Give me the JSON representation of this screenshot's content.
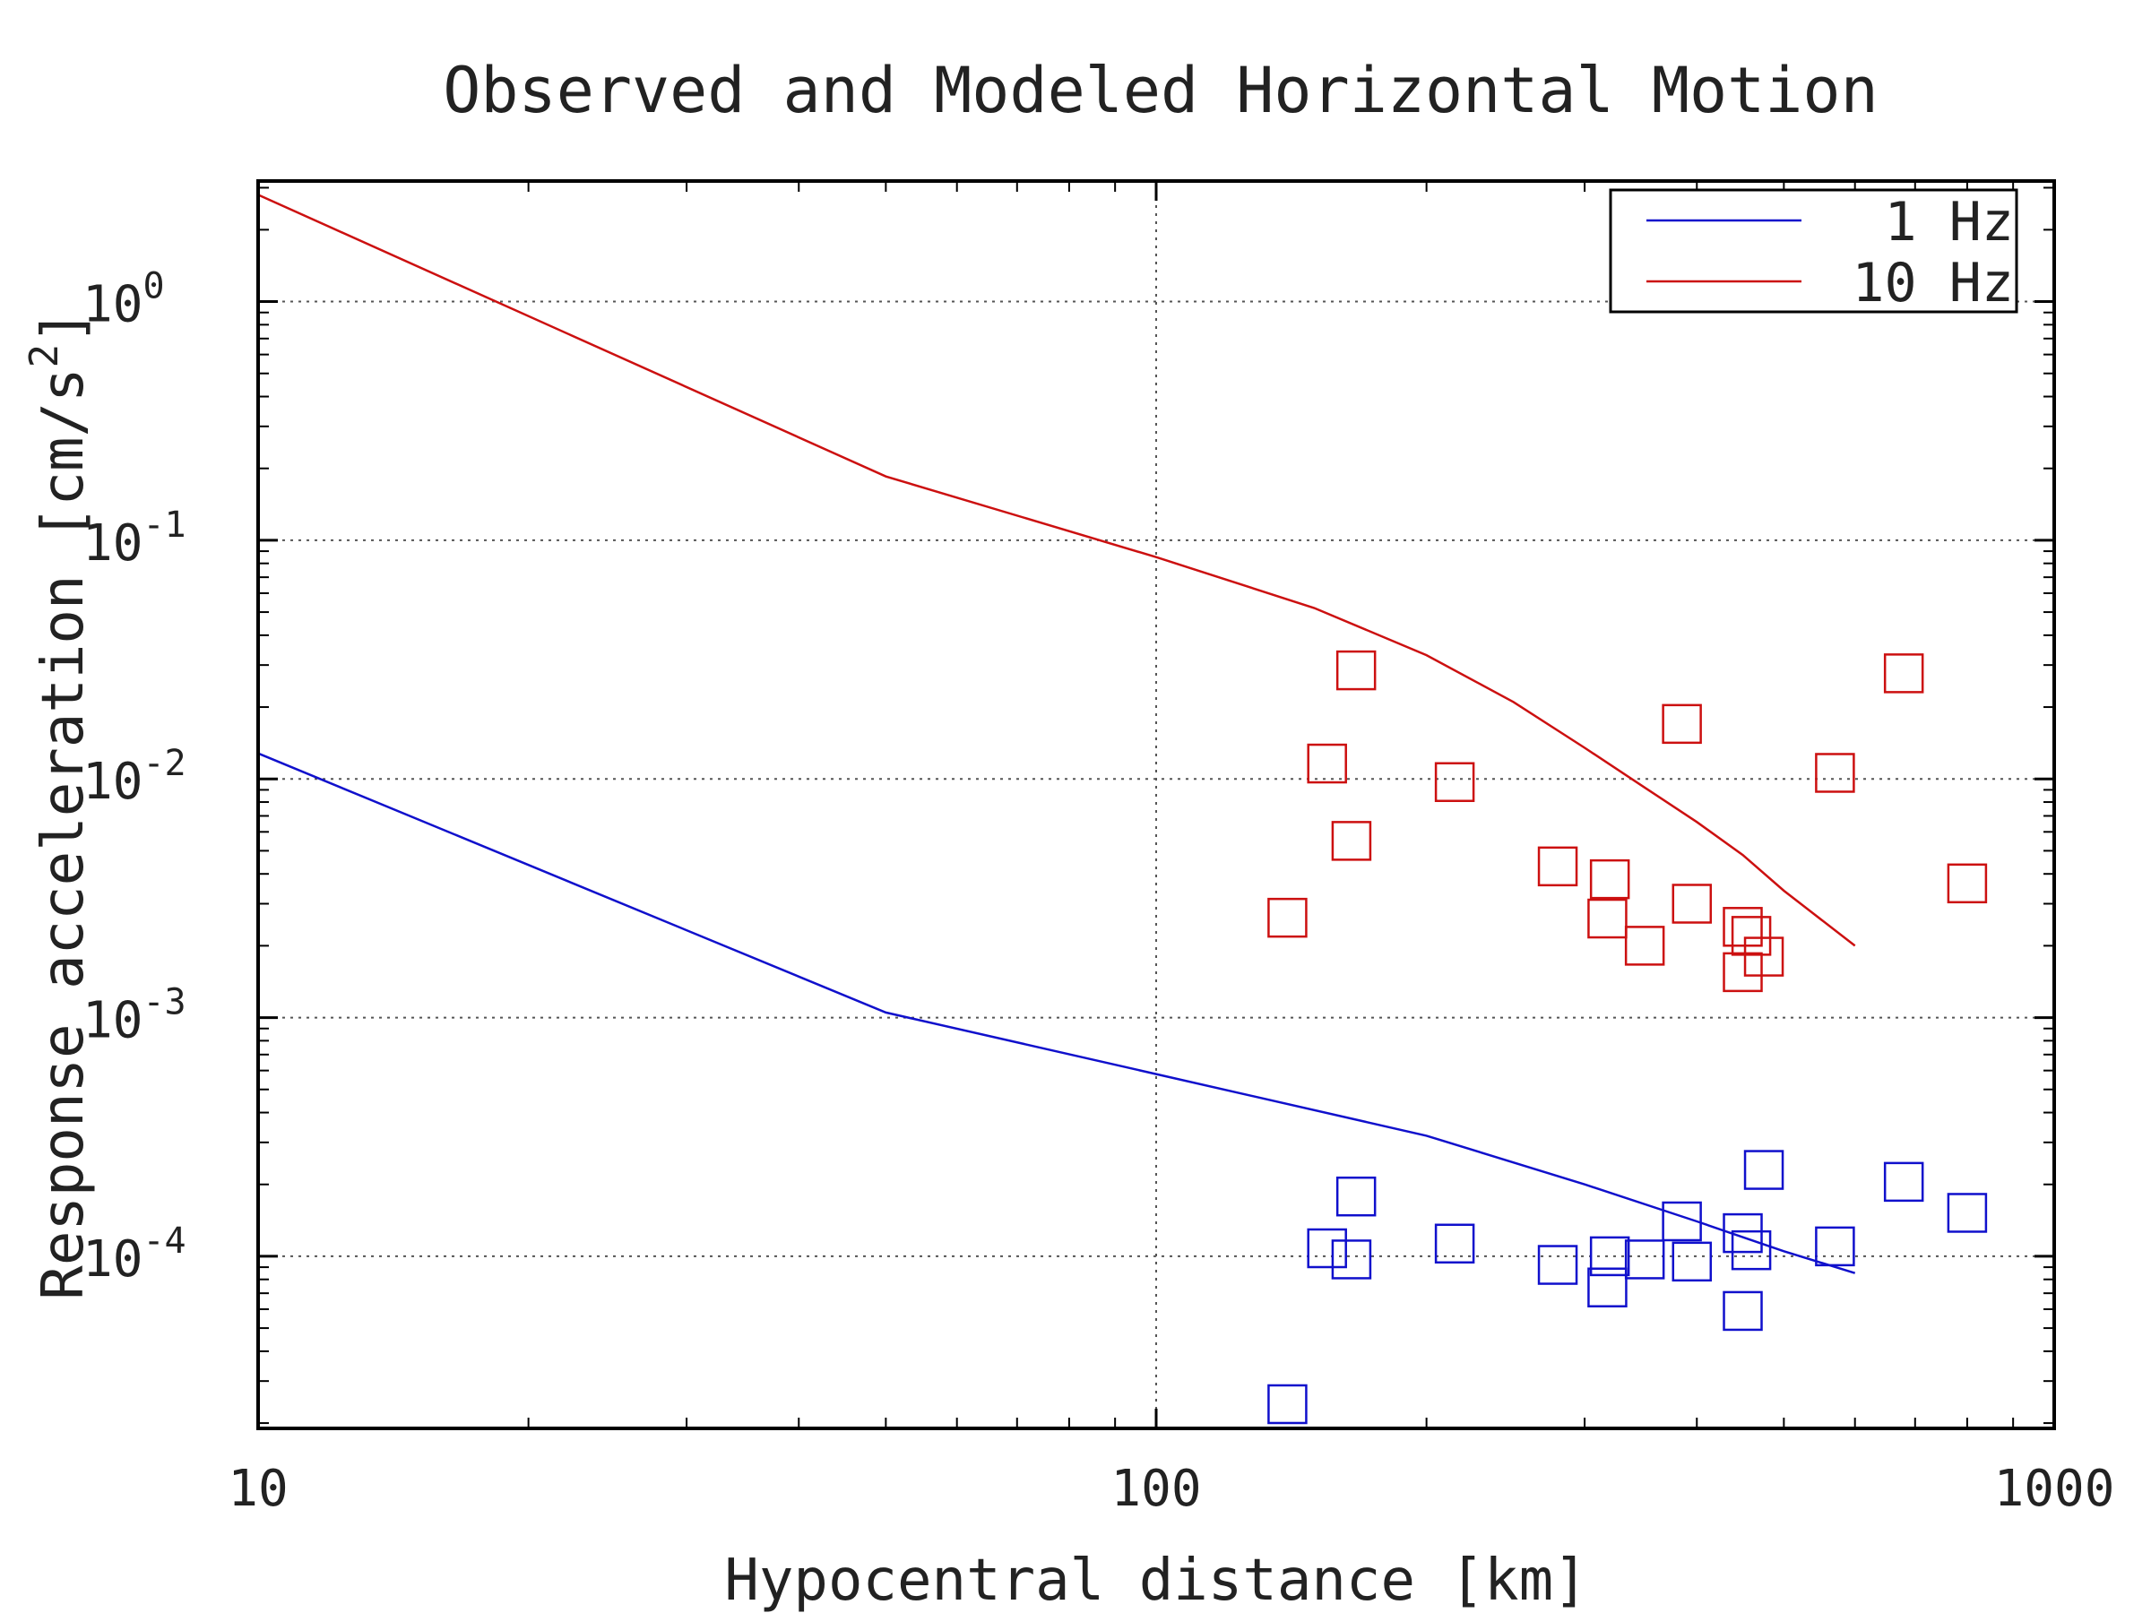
{
  "chart_data": {
    "type": "scatter",
    "title": "Observed and Modeled Horizontal Motion",
    "xlabel": "Hypocentral distance [km]",
    "ylabel": "Response acceleration [cm/s",
    "ylabel_sup": "2",
    "ylabel_close": "]",
    "xscale": "log",
    "yscale": "log",
    "xlim": [
      10,
      1000
    ],
    "ylim": [
      1.9e-05,
      3.2
    ],
    "grid": true,
    "legend_position": "top-right",
    "x_ticks": [
      {
        "value": 10,
        "label": "10"
      },
      {
        "value": 100,
        "label": "100"
      },
      {
        "value": 1000,
        "label": "1000"
      }
    ],
    "y_ticks": [
      {
        "value": 1,
        "base": "10",
        "exp": "0"
      },
      {
        "value": 0.1,
        "base": "10",
        "exp": "-1"
      },
      {
        "value": 0.01,
        "base": "10",
        "exp": "-2"
      },
      {
        "value": 0.001,
        "base": "10",
        "exp": "-3"
      },
      {
        "value": 0.0001,
        "base": "10",
        "exp": "-4"
      }
    ],
    "series": [
      {
        "name": "1 Hz",
        "color": "#1010cc",
        "model": [
          [
            10,
            0.0128
          ],
          [
            50,
            0.00105
          ],
          [
            100,
            0.00058
          ],
          [
            200,
            0.00032
          ],
          [
            300,
            0.0002
          ],
          [
            400,
            0.00014
          ],
          [
            500,
            0.000105
          ],
          [
            600,
            8.5e-05
          ]
        ],
        "observed": [
          [
            140,
            2.4e-05
          ],
          [
            155,
            0.000108
          ],
          [
            165,
            9.7e-05
          ],
          [
            167,
            0.000178
          ],
          [
            215,
            0.000113
          ],
          [
            280,
            9.2e-05
          ],
          [
            318,
            7.4e-05
          ],
          [
            320,
            0.0001
          ],
          [
            350,
            9.7e-05
          ],
          [
            385,
            0.00014
          ],
          [
            395,
            9.5e-05
          ],
          [
            450,
            0.000125
          ],
          [
            450,
            5.9e-05
          ],
          [
            460,
            0.000106
          ],
          [
            475,
            0.00023
          ],
          [
            570,
            0.00011
          ],
          [
            680,
            0.000205
          ],
          [
            800,
            0.000152
          ]
        ]
      },
      {
        "name": "10 Hz",
        "color": "#cc1010",
        "model": [
          [
            10,
            2.8
          ],
          [
            50,
            0.185
          ],
          [
            100,
            0.085
          ],
          [
            150,
            0.052
          ],
          [
            200,
            0.033
          ],
          [
            250,
            0.021
          ],
          [
            300,
            0.0135
          ],
          [
            350,
            0.0092
          ],
          [
            400,
            0.0066
          ],
          [
            450,
            0.0048
          ],
          [
            500,
            0.0034
          ],
          [
            600,
            0.002
          ]
        ],
        "observed": [
          [
            140,
            0.00262
          ],
          [
            155,
            0.0116
          ],
          [
            165,
            0.0055
          ],
          [
            167,
            0.0285
          ],
          [
            215,
            0.0097
          ],
          [
            280,
            0.0043
          ],
          [
            318,
            0.0026
          ],
          [
            320,
            0.0038
          ],
          [
            350,
            0.002
          ],
          [
            385,
            0.017
          ],
          [
            395,
            0.003
          ],
          [
            450,
            0.0024
          ],
          [
            450,
            0.00155
          ],
          [
            460,
            0.0022
          ],
          [
            475,
            0.0018
          ],
          [
            570,
            0.0106
          ],
          [
            680,
            0.0277
          ],
          [
            800,
            0.00365
          ]
        ]
      }
    ]
  }
}
